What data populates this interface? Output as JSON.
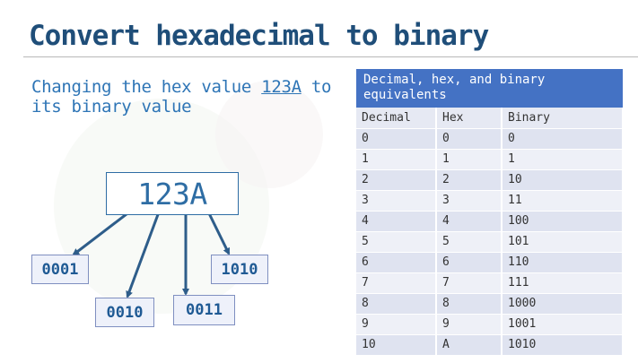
{
  "slide": {
    "title": "Convert hexadecimal to binary",
    "subtitle_prefix": "Changing the hex value ",
    "subtitle_link": "123A",
    "subtitle_suffix": " to its binary value"
  },
  "diagram": {
    "hex_value": "123A",
    "nibbles": [
      "0001",
      "0010",
      "0011",
      "1010"
    ],
    "accent_color": "#2e6da4"
  },
  "table": {
    "caption": "Decimal, hex, and binary equivalents",
    "headers": [
      "Decimal",
      "Hex",
      "Binary"
    ],
    "rows": [
      [
        "0",
        "0",
        "0"
      ],
      [
        "1",
        "1",
        "1"
      ],
      [
        "2",
        "2",
        "10"
      ],
      [
        "3",
        "3",
        "11"
      ],
      [
        "4",
        "4",
        "100"
      ],
      [
        "5",
        "5",
        "101"
      ],
      [
        "6",
        "6",
        "110"
      ],
      [
        "7",
        "7",
        "111"
      ],
      [
        "8",
        "8",
        "1000"
      ],
      [
        "9",
        "9",
        "1001"
      ],
      [
        "10",
        "A",
        "1010"
      ]
    ],
    "header_color": "#4472c4"
  }
}
